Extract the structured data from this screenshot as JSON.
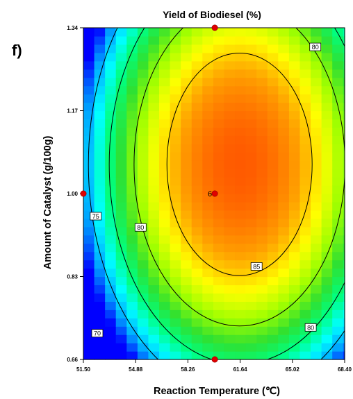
{
  "chart_data": {
    "type": "heatmap",
    "panel_label": "f)",
    "title": "Yield of Biodiesel (%)",
    "xlabel": "Reaction Temperature  (℃)",
    "ylabel": "Amount of Catalyst  (g/100g)",
    "xlim": [
      51.5,
      68.4
    ],
    "ylim": [
      0.66,
      1.34
    ],
    "x_ticks": [
      51.5,
      54.88,
      58.26,
      61.64,
      65.02,
      68.4
    ],
    "x_tick_labels": [
      "51.50",
      "54.88",
      "58.26",
      "61.64",
      "65.02",
      "68.40"
    ],
    "y_ticks": [
      0.66,
      0.83,
      1.0,
      1.17,
      1.34
    ],
    "y_tick_labels": [
      "0.66",
      "0.83",
      "1.00",
      "1.17",
      "1.34"
    ],
    "surface": {
      "max_yield": 89.5,
      "optimum": {
        "x": 61.6,
        "y": 1.06
      },
      "x_scale": 7.0,
      "y_scale": 0.34,
      "x_level_step": 0.7,
      "y_level_step": 0.017,
      "colormap": [
        "#0000ff",
        "#00a0ff",
        "#00ffff",
        "#00ff80",
        "#30e030",
        "#a0ff00",
        "#ffff00",
        "#ffa000",
        "#ff5a00"
      ]
    },
    "contours": [
      {
        "level": 70,
        "labels": [
          {
            "text": "70",
            "x": 52.4,
            "y": 0.713
          }
        ]
      },
      {
        "level": 75,
        "labels": [
          {
            "text": "75",
            "x": 52.3,
            "y": 0.953
          }
        ]
      },
      {
        "level": 80,
        "labels": [
          {
            "text": "80",
            "x": 55.2,
            "y": 0.93
          },
          {
            "text": "80",
            "x": 66.5,
            "y": 1.3
          },
          {
            "text": "80",
            "x": 66.2,
            "y": 0.725
          }
        ]
      },
      {
        "level": 85,
        "labels": [
          {
            "text": "85",
            "x": 62.7,
            "y": 0.85
          }
        ]
      }
    ],
    "design_points": [
      {
        "x": 60.0,
        "y": 1.34,
        "label": ""
      },
      {
        "x": 51.5,
        "y": 1.0,
        "label": ""
      },
      {
        "x": 60.0,
        "y": 1.0,
        "label": "6"
      },
      {
        "x": 60.0,
        "y": 0.66,
        "label": ""
      }
    ],
    "colors": {
      "design_point": "#e00000",
      "contour_line": "#000000",
      "axis": "#000000"
    }
  }
}
